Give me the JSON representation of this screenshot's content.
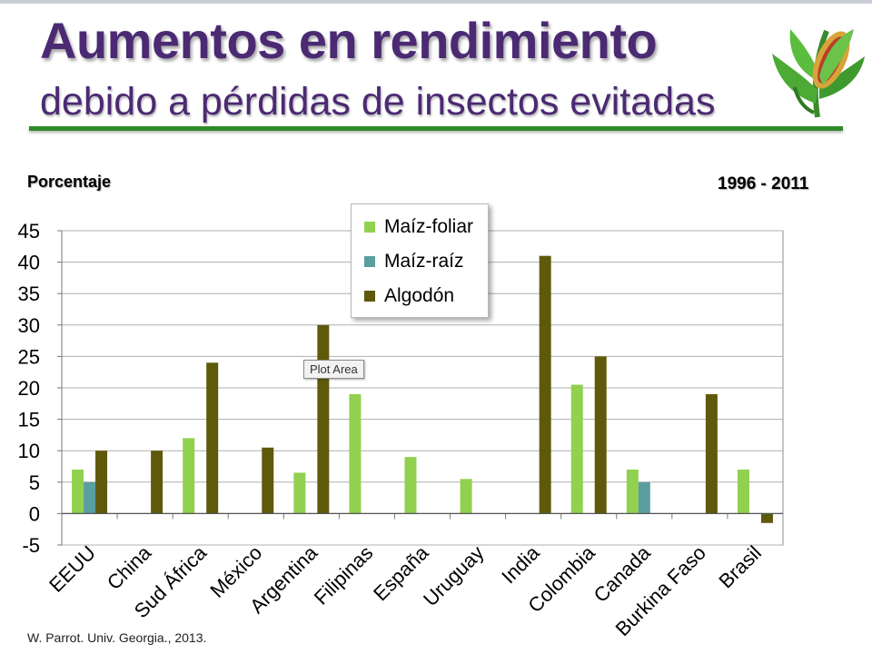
{
  "slide": {
    "title": "Aumentos en rendimiento",
    "subtitle": "debido a pérdidas de insectos evitadas",
    "period": "1996 - 2011",
    "credit": "W. Parrot. Univ. Georgia., 2013.",
    "tooltip": "Plot Area",
    "logo_icon": "corn-plant-icon"
  },
  "colors": {
    "title": "#4b2a73",
    "rule": "#2f8a2a",
    "maiz_foliar": "#92d050",
    "maiz_raiz": "#5b9ea0",
    "algodon": "#5f5a0b"
  },
  "chart_data": {
    "type": "bar",
    "ylabel": "Porcentaje",
    "ylim": [
      -5,
      45
    ],
    "yticks": [
      -5,
      0,
      5,
      10,
      15,
      20,
      25,
      30,
      35,
      40,
      45
    ],
    "grid": true,
    "legend_position": "top-center",
    "categories": [
      "EEUU",
      "China",
      "Sud África",
      "México",
      "Argentina",
      "Filipinas",
      "España",
      "Uruguay",
      "India",
      "Colombia",
      "Canada",
      "Burkina Faso",
      "Brasil"
    ],
    "series": [
      {
        "name": "Maíz-foliar",
        "color": "#92d050",
        "values": [
          7,
          null,
          12,
          null,
          6.5,
          19,
          9,
          5.5,
          null,
          20.5,
          7,
          null,
          7
        ]
      },
      {
        "name": "Maíz-raíz",
        "color": "#5b9ea0",
        "values": [
          5,
          null,
          null,
          null,
          null,
          null,
          null,
          null,
          null,
          null,
          5,
          null,
          null
        ]
      },
      {
        "name": "Algodón",
        "color": "#5f5a0b",
        "values": [
          10,
          10,
          24,
          10.5,
          30,
          null,
          null,
          null,
          41,
          25,
          null,
          19,
          -1.5
        ]
      }
    ]
  }
}
